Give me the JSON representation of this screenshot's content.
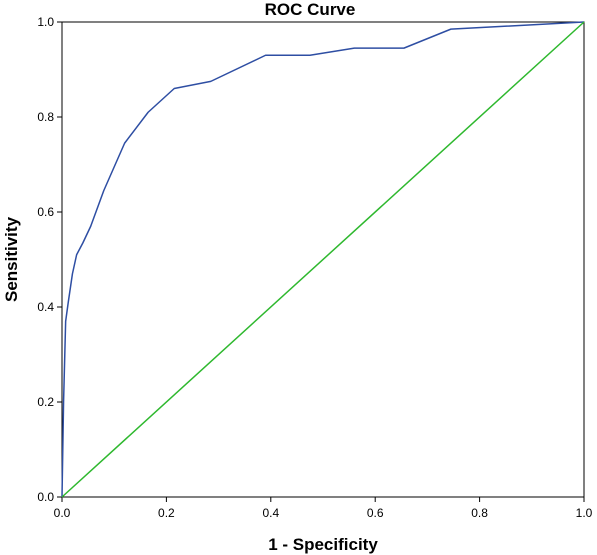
{
  "chart_data": {
    "type": "line",
    "title": "ROC Curve",
    "xlabel": "1 - Specificity",
    "ylabel": "Sensitivity",
    "xlim": [
      0,
      1
    ],
    "ylim": [
      0,
      1
    ],
    "x_ticks": [
      "0.0",
      "0.2",
      "0.4",
      "0.6",
      "0.8",
      "1.0"
    ],
    "y_ticks": [
      "0.0",
      "0.2",
      "0.4",
      "0.6",
      "0.8",
      "1.0"
    ],
    "grid": false,
    "legend": "none",
    "series": [
      {
        "color": "#2e4ea3",
        "x": [
          0,
          0.003,
          0.007,
          0.012,
          0.02,
          0.028,
          0.04,
          0.055,
          0.08,
          0.12,
          0.165,
          0.215,
          0.285,
          0.39,
          0.475,
          0.56,
          0.655,
          0.745,
          1.0
        ],
        "y": [
          0,
          0.2,
          0.37,
          0.41,
          0.47,
          0.51,
          0.535,
          0.57,
          0.645,
          0.745,
          0.81,
          0.86,
          0.875,
          0.93,
          0.93,
          0.945,
          0.945,
          0.985,
          1.0
        ]
      },
      {
        "color": "#2eb82e",
        "x": [
          0,
          1
        ],
        "y": [
          0,
          1
        ]
      }
    ]
  }
}
